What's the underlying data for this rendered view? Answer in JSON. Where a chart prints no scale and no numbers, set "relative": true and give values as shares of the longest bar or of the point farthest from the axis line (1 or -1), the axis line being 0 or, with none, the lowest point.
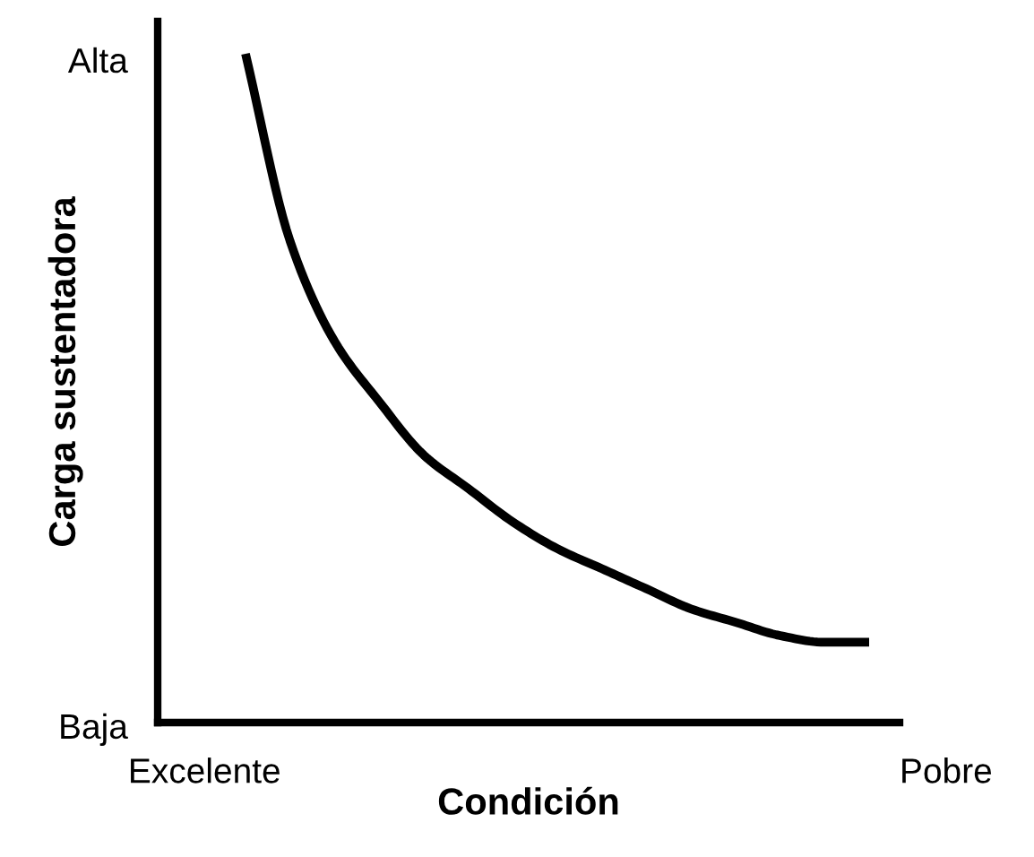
{
  "chart_data": {
    "type": "line",
    "relative": true,
    "xlabel": "Condición",
    "ylabel": "Carga sustentadora",
    "categories": [
      null,
      null,
      null,
      null,
      null,
      null,
      null,
      null,
      null,
      null,
      null,
      null,
      null,
      null,
      null
    ],
    "series": [
      {
        "color": "#000000",
        "values": [
          1.0,
          0.72,
          0.57,
          0.48,
          0.4,
          0.35,
          0.3,
          0.26,
          0.23,
          0.2,
          0.17,
          0.15,
          0.13,
          0.12,
          0.12
        ]
      }
    ],
    "annotations": [
      "Alta",
      "Baja",
      "Excelente",
      "Pobre"
    ],
    "marker": "none",
    "line_style": "solid",
    "legend": false
  }
}
